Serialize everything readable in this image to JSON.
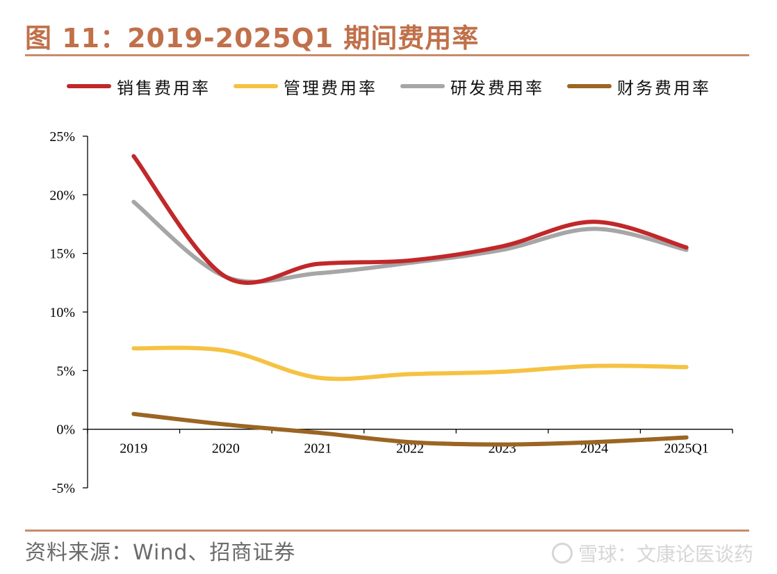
{
  "title": "图 11：2019-2025Q1 期间费用率",
  "source": "资料来源：Wind、招商证券",
  "watermark": "雪球：文康论医谈药",
  "chart_data": {
    "type": "line",
    "categories": [
      "2019",
      "2020",
      "2021",
      "2022",
      "2023",
      "2024",
      "2025Q1"
    ],
    "ylim": [
      -5,
      25
    ],
    "yticks": [
      25,
      20,
      15,
      10,
      5,
      0,
      -5
    ],
    "ytick_labels": [
      "25%",
      "20%",
      "15%",
      "10%",
      "5%",
      "0%",
      "-5%"
    ],
    "legend_position": "top",
    "grid": false,
    "series": [
      {
        "name": "销售费用率",
        "color": "#c0282a",
        "values": [
          23.3,
          13.0,
          14.1,
          14.4,
          15.6,
          17.7,
          15.5
        ]
      },
      {
        "name": "管理费用率",
        "color": "#f5c242",
        "values": [
          6.9,
          6.7,
          4.4,
          4.7,
          4.9,
          5.4,
          5.3
        ]
      },
      {
        "name": "研发费用率",
        "color": "#a6a6a6",
        "values": [
          19.4,
          13.0,
          13.3,
          14.2,
          15.3,
          17.1,
          15.3
        ]
      },
      {
        "name": "财务费用率",
        "color": "#9b6523",
        "values": [
          1.3,
          0.4,
          -0.3,
          -1.1,
          -1.3,
          -1.1,
          -0.7
        ]
      }
    ]
  }
}
